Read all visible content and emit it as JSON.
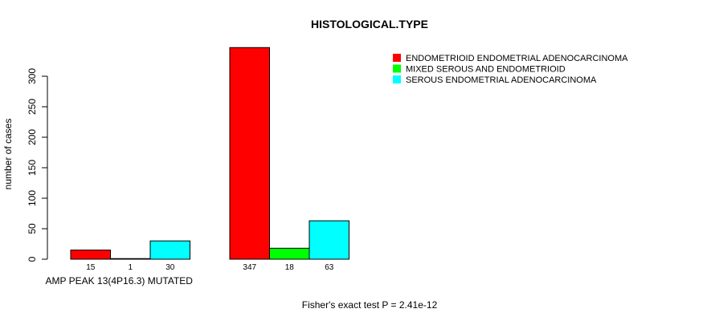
{
  "chart_data": {
    "type": "bar",
    "title": "HISTOLOGICAL.TYPE",
    "xlabel": "",
    "ylabel": "number of cases",
    "ylim": [
      0,
      347
    ],
    "yticks": [
      0,
      50,
      100,
      150,
      200,
      250,
      300
    ],
    "grid": false,
    "legend_position": "top-right",
    "groups": [
      {
        "label": "AMP PEAK 13(4P16.3) MUTATED",
        "values": [
          15,
          1,
          30
        ]
      },
      {
        "label": "",
        "values": [
          347,
          18,
          63
        ]
      }
    ],
    "series": [
      {
        "name": "ENDOMETRIOID ENDOMETRIAL ADENOCARCINOMA",
        "color": "#ff0000"
      },
      {
        "name": "MIXED SEROUS AND ENDOMETRIOID",
        "color": "#00ff00"
      },
      {
        "name": "SEROUS ENDOMETRIAL ADENOCARCINOMA",
        "color": "#00ffff"
      }
    ],
    "annotation": "Fisher's exact test P = 2.41e-12"
  }
}
